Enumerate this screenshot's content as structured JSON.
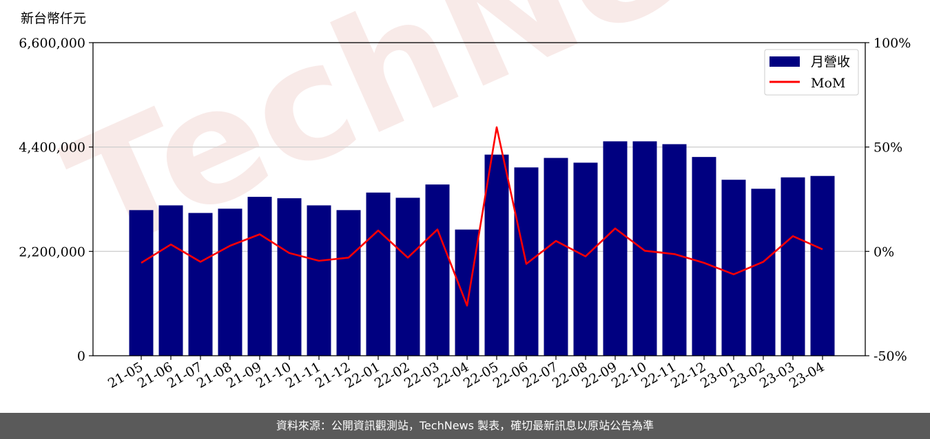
{
  "chart_data": {
    "type": "bar",
    "unit_label": "新台幣仟元",
    "categories": [
      "21-05",
      "21-06",
      "21-07",
      "21-08",
      "21-09",
      "21-10",
      "21-11",
      "21-12",
      "22-01",
      "22-02",
      "22-03",
      "22-04",
      "22-05",
      "22-06",
      "22-07",
      "22-08",
      "22-09",
      "22-10",
      "22-11",
      "22-12",
      "23-01",
      "23-02",
      "23-03",
      "23-04"
    ],
    "series": [
      {
        "name": "月營收",
        "axis": "left",
        "type": "bar",
        "color": "#000080",
        "values": [
          3070000,
          3170000,
          3010000,
          3100000,
          3350000,
          3320000,
          3170000,
          3070000,
          3440000,
          3330000,
          3610000,
          2660000,
          4240000,
          3970000,
          4170000,
          4070000,
          4520000,
          4520000,
          4460000,
          4190000,
          3710000,
          3520000,
          3760000,
          3790000
        ]
      },
      {
        "name": "MoM",
        "axis": "right",
        "type": "line",
        "color": "#ff0000",
        "values": [
          -5.5,
          3.3,
          -5.0,
          2.7,
          8.2,
          -0.8,
          -4.5,
          -3.0,
          10.0,
          -3.0,
          10.5,
          -26.0,
          59.5,
          -6.0,
          5.0,
          -2.4,
          11.0,
          0.3,
          -1.3,
          -5.5,
          -11.0,
          -5.0,
          7.3,
          1.0
        ]
      }
    ],
    "left_axis": {
      "ylim": [
        0,
        6600000
      ],
      "ticks": [
        "0",
        "2,200,000",
        "4,400,000",
        "6,600,000"
      ]
    },
    "right_axis": {
      "ylim": [
        -50,
        100
      ],
      "ticks": [
        "-50%",
        "0%",
        "50%",
        "100%"
      ]
    },
    "grid": "horizontal",
    "legend_position": "top-right"
  },
  "watermark": "TechNews",
  "footer": {
    "source_text": "資料來源：公開資訊觀測站，TechNews 製表，確切最新訊息以原站公告為準"
  }
}
